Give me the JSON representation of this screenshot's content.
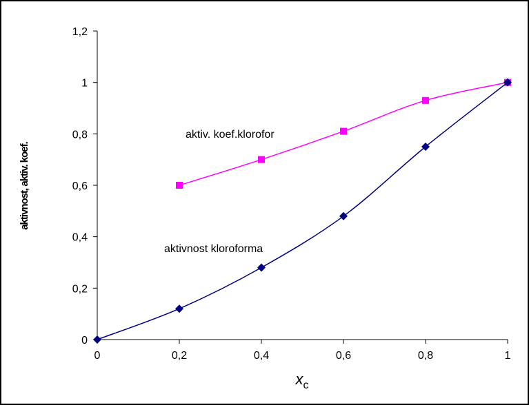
{
  "chart_data": {
    "type": "line",
    "title": "",
    "xlabel": "x",
    "xlabel_subscript": "c",
    "ylabel": "aktivnost, aktiv. koef.",
    "xlim": [
      0,
      1
    ],
    "ylim": [
      0,
      1.2
    ],
    "x_ticks": [
      "0",
      "0,2",
      "0,4",
      "0,6",
      "0,8",
      "1"
    ],
    "y_ticks": [
      "0",
      "0,2",
      "0,4",
      "0,6",
      "0,8",
      "1",
      "1,2"
    ],
    "grid": false,
    "legend": "none",
    "series": [
      {
        "name": "aktiv. koef.klorofor",
        "color": "#ff00ff",
        "marker": "square",
        "x": [
          0.2,
          0.4,
          0.6,
          0.8,
          1.0
        ],
        "y": [
          0.6,
          0.7,
          0.81,
          0.93,
          1.0
        ]
      },
      {
        "name": "aktivnost kloroforma",
        "color": "#000080",
        "marker": "diamond",
        "x": [
          0,
          0.2,
          0.4,
          0.6,
          0.8,
          1.0
        ],
        "y": [
          0,
          0.12,
          0.28,
          0.48,
          0.75,
          1.0
        ]
      }
    ]
  }
}
